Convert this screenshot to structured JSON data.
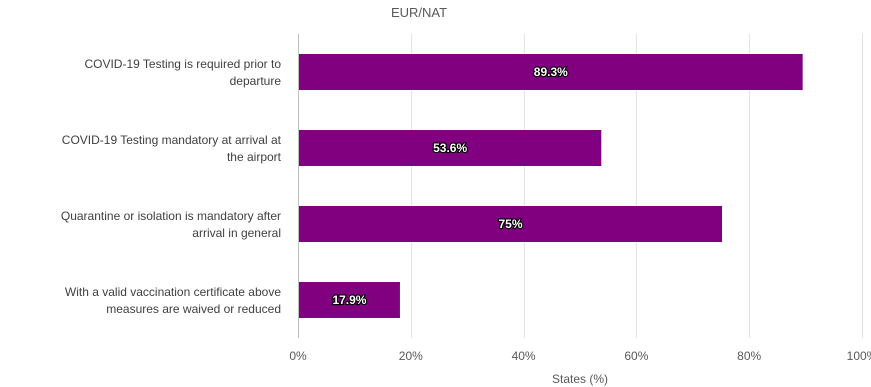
{
  "chart_data": {
    "type": "bar",
    "orientation": "horizontal",
    "title": "EUR/NAT",
    "xlabel": "States (%)",
    "ylabel": "",
    "categories": [
      [
        "COVID-19 Testing is required prior to",
        "departure"
      ],
      [
        "COVID-19 Testing mandatory at arrival at",
        "the airport"
      ],
      [
        "Quarantine or isolation is mandatory after",
        "arrival in general"
      ],
      [
        "With a valid vaccination certificate above",
        "measures are waived or reduced"
      ]
    ],
    "values": [
      89.3,
      53.6,
      75,
      17.9
    ],
    "data_labels": [
      "89.3%",
      "53.6%",
      "75%",
      "17.9%"
    ],
    "xlim": [
      0,
      100
    ],
    "xticks": [
      0,
      20,
      40,
      60,
      80,
      100
    ],
    "xtick_labels": [
      "0%",
      "20%",
      "40%",
      "60%",
      "80%",
      "100%"
    ],
    "grid": true,
    "legend": "none",
    "colors": {
      "bar": "#800080",
      "grid": "#e3e3e3"
    }
  }
}
